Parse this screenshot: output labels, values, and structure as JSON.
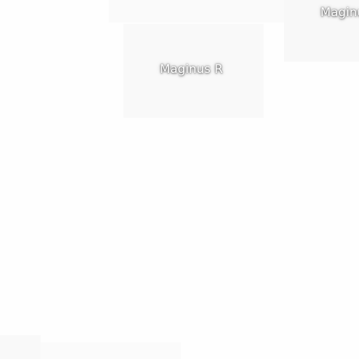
{
  "map": {
    "labels": [
      {
        "text": "Maginus R"
      },
      {
        "text": "Maginus"
      }
    ]
  }
}
